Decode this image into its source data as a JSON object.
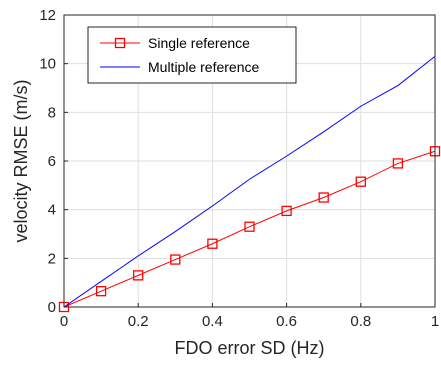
{
  "chart_data": {
    "type": "line",
    "xlabel": "FDO error SD (Hz)",
    "ylabel": "velocity RMSE (m/s)",
    "xlim": [
      0,
      1
    ],
    "ylim": [
      0,
      12
    ],
    "x_ticks": [
      "0",
      "0.2",
      "0.4",
      "0.6",
      "0.8",
      "1"
    ],
    "y_ticks": [
      "0",
      "2",
      "4",
      "6",
      "8",
      "10",
      "12"
    ],
    "grid": true,
    "legend_position": "top-left",
    "x": [
      0,
      0.1,
      0.2,
      0.3,
      0.4,
      0.5,
      0.6,
      0.7,
      0.8,
      0.9,
      1.0
    ],
    "series": [
      {
        "name": "Single reference",
        "color": "#ff0000",
        "marker": "square",
        "values": [
          0.0,
          0.65,
          1.3,
          1.95,
          2.6,
          3.3,
          3.95,
          4.5,
          5.15,
          5.9,
          6.4
        ]
      },
      {
        "name": "Multiple reference",
        "color": "#0000ff",
        "marker": "none",
        "values": [
          0.0,
          1.05,
          2.1,
          3.1,
          4.15,
          5.25,
          6.2,
          7.2,
          8.25,
          9.1,
          10.3
        ]
      }
    ]
  }
}
